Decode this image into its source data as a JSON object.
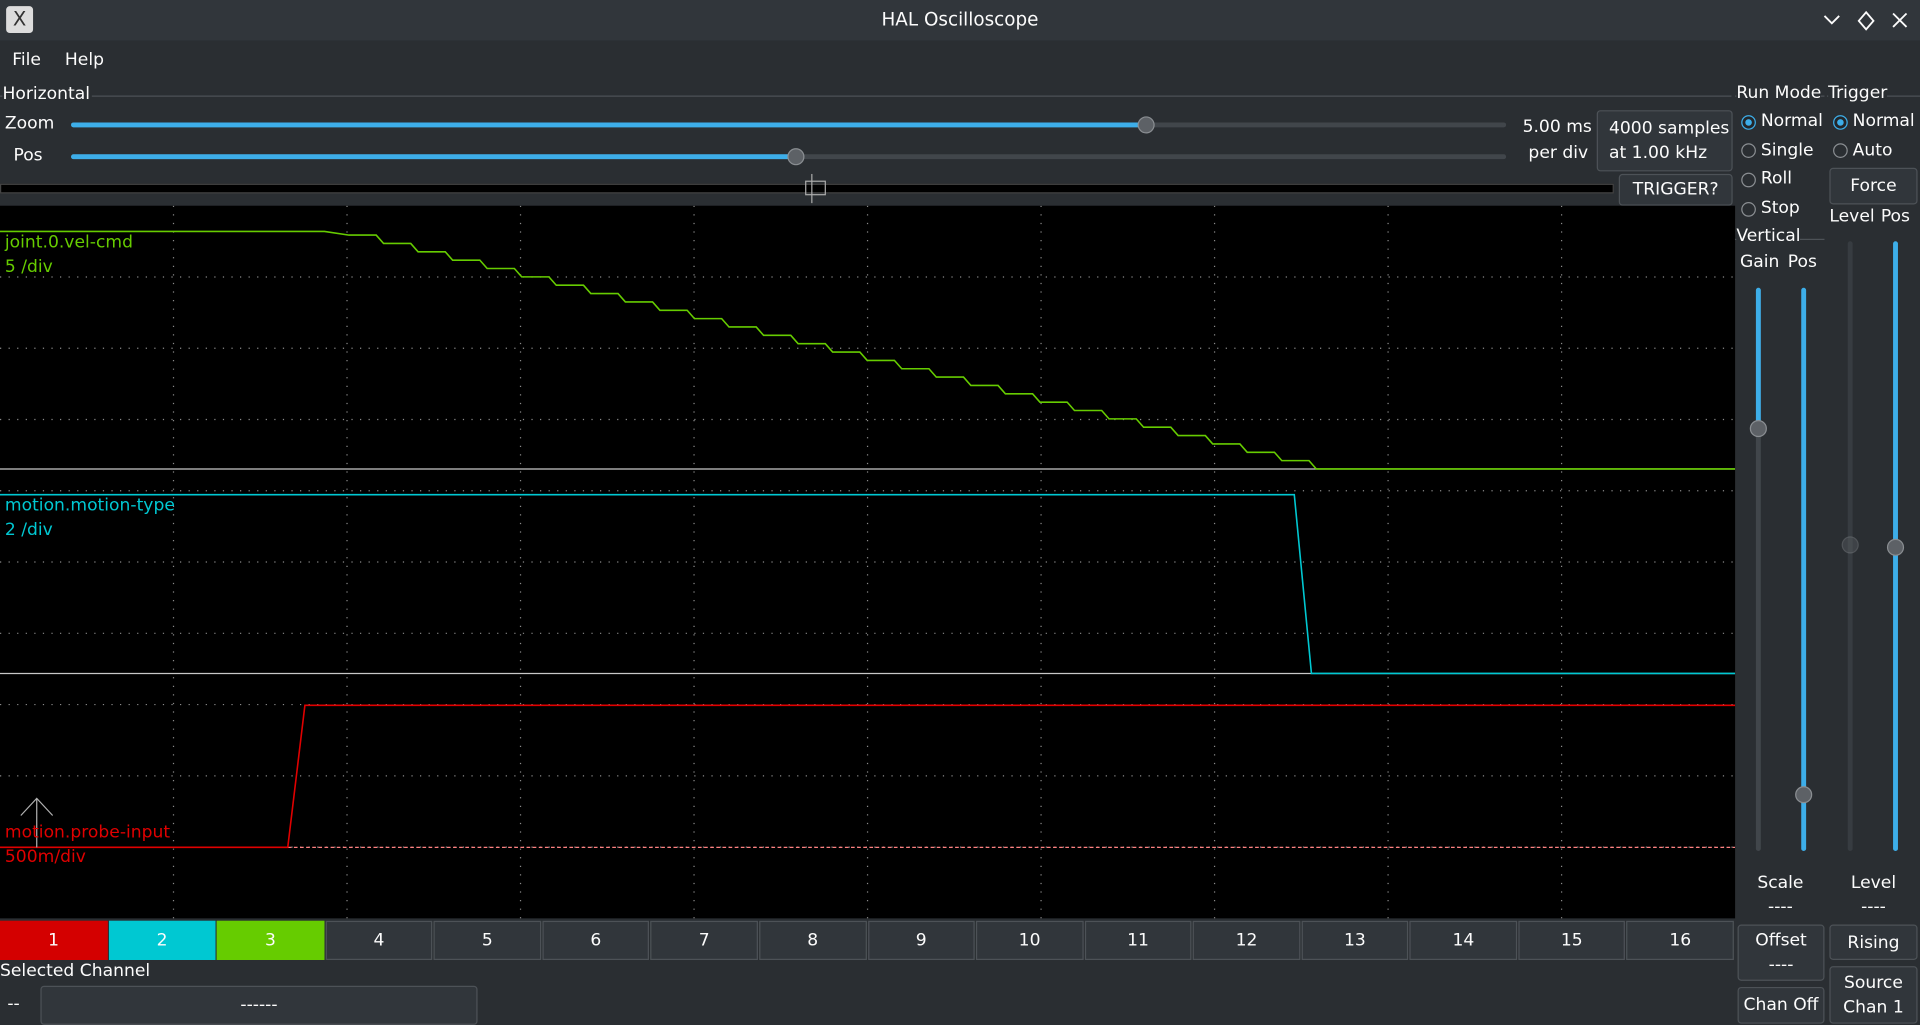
{
  "window": {
    "title": "HAL Oscilloscope"
  },
  "menu": [
    "File",
    "Help"
  ],
  "horizontal": {
    "title": "Horizontal",
    "zoom_label": "Zoom",
    "pos_label": "Pos",
    "rate": [
      "5.00 ms",
      "per div"
    ],
    "samples": [
      "4000 samples",
      "at 1.00 kHz"
    ],
    "trigger_status": "TRIGGER?"
  },
  "run_mode": {
    "title": "Run Mode",
    "options": [
      "Normal",
      "Single",
      "Roll",
      "Stop"
    ]
  },
  "trigger": {
    "title": "Trigger",
    "options": [
      "Normal",
      "Auto"
    ],
    "force": "Force",
    "level": "Level",
    "pos": "Pos",
    "level_label": "Level",
    "level_value": "----",
    "edge": "Rising",
    "source": [
      "Source",
      "Chan  1"
    ]
  },
  "vertical": {
    "title": "Vertical",
    "gain": "Gain",
    "pos": "Pos",
    "scale_label": "Scale",
    "scale_value": "----",
    "offset": [
      "Offset",
      "----"
    ],
    "chan_off": "Chan Off"
  },
  "traces": [
    {
      "name": "joint.0.vel-cmd",
      "scale": "5 /div"
    },
    {
      "name": "motion.motion-type",
      "scale": "2 /div"
    },
    {
      "name": "motion.probe-input",
      "scale": "500m/div"
    }
  ],
  "channels": [
    "1",
    "2",
    "3",
    "4",
    "5",
    "6",
    "7",
    "8",
    "9",
    "10",
    "11",
    "12",
    "13",
    "14",
    "15",
    "16"
  ],
  "selected": {
    "title": "Selected Channel",
    "number": "--",
    "name": "------"
  }
}
